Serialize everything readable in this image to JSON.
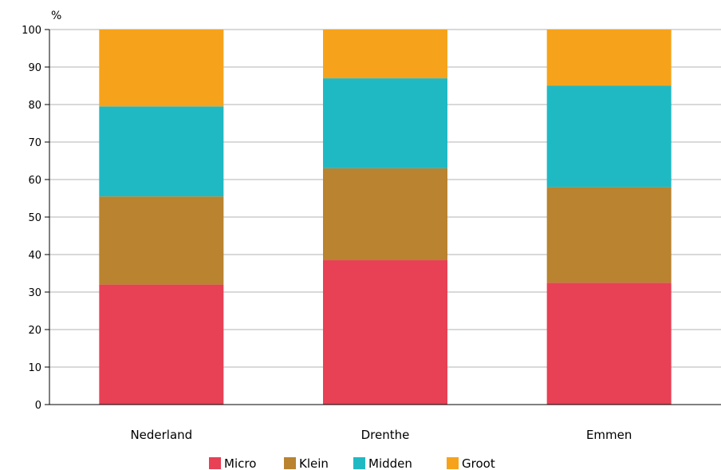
{
  "chart_data": {
    "type": "bar",
    "stacked": true,
    "title": "",
    "xlabel": "",
    "ylabel": "%",
    "ylim": [
      0,
      100
    ],
    "yticks": [
      0,
      10,
      20,
      30,
      40,
      50,
      60,
      70,
      80,
      90,
      100
    ],
    "grid": "horizontal",
    "legend_position": "bottom",
    "categories": [
      "Nederland",
      "Drenthe",
      "Emmen"
    ],
    "series": [
      {
        "name": "Micro",
        "color": "#e84055",
        "values": [
          32,
          38.5,
          32.5
        ]
      },
      {
        "name": "Klein",
        "color": "#b9832f",
        "values": [
          23.5,
          24.5,
          25.5
        ]
      },
      {
        "name": "Midden",
        "color": "#1fb9c4",
        "values": [
          24,
          24,
          27
        ]
      },
      {
        "name": "Groot",
        "color": "#f6a31b",
        "values": [
          20.5,
          13,
          15
        ]
      }
    ]
  }
}
